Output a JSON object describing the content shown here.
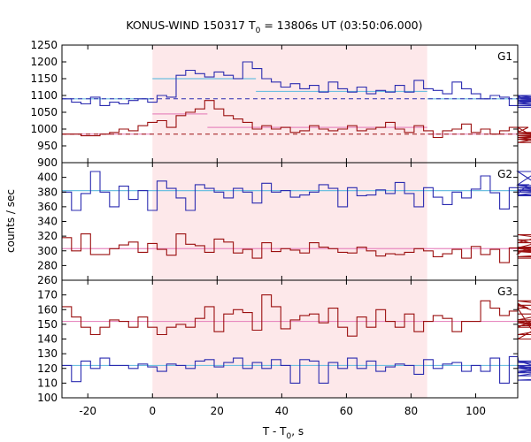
{
  "chart_data": {
    "type": "line",
    "title": "KONUS-WIND 150317 T",
    "title_sub": "0",
    "title_rest": " = 13806s UT (03:50:06.000)",
    "xlabel_main": "T - T",
    "xlabel_sub": "0",
    "xlabel_rest": ", s",
    "ylabel": "counts / sec",
    "xlim": [
      -28,
      113
    ],
    "xticks": [
      "-20",
      "0",
      "20",
      "40",
      "60",
      "80",
      "100"
    ],
    "xtick_values": [
      -20,
      0,
      20,
      40,
      60,
      80,
      100
    ],
    "step": 2.944,
    "x_start": -28,
    "highlight": {
      "from": 0,
      "to": 85,
      "color": "#fde8ea"
    },
    "colors": {
      "blue": "#2b2bb0",
      "red": "#9b1010",
      "blue_fit": "#6ec0e0",
      "red_fit": "#e88ac0"
    },
    "panels": [
      {
        "name": "G1",
        "ylim": [
          900,
          1250
        ],
        "yticks": [
          "900",
          "950",
          "1000",
          "1050",
          "1100",
          "1150",
          "1200",
          "1250"
        ],
        "ytick_values": [
          900,
          950,
          1000,
          1050,
          1100,
          1150,
          1200,
          1250
        ],
        "series": [
          {
            "color": "blue",
            "values": [
              1090,
              1080,
              1075,
              1095,
              1070,
              1080,
              1075,
              1085,
              1090,
              1080,
              1100,
              1095,
              1160,
              1175,
              1165,
              1155,
              1170,
              1160,
              1150,
              1200,
              1180,
              1150,
              1140,
              1125,
              1135,
              1120,
              1130,
              1110,
              1140,
              1120,
              1110,
              1125,
              1105,
              1115,
              1110,
              1130,
              1110,
              1145,
              1120,
              1115,
              1105,
              1140,
              1120,
              1105,
              1090,
              1100,
              1095,
              1070,
              1100,
              1080,
              1095,
              1075,
              1090,
              1085,
              1100,
              1080,
              1095,
              1070,
              1085,
              1065
            ],
            "fit_segments": [
              [
                -28,
                0,
                1090
              ],
              [
                0,
                32,
                1150
              ],
              [
                32,
                85,
                1112
              ],
              [
                85,
                113,
                1090
              ]
            ],
            "baseline": 1090
          },
          {
            "color": "red",
            "values": [
              985,
              985,
              980,
              980,
              985,
              990,
              1000,
              995,
              1010,
              1020,
              1025,
              1005,
              1040,
              1050,
              1060,
              1085,
              1060,
              1040,
              1030,
              1020,
              1000,
              1010,
              1000,
              1005,
              990,
              995,
              1010,
              1000,
              995,
              1000,
              1010,
              995,
              1000,
              1005,
              1020,
              1000,
              990,
              1010,
              995,
              975,
              995,
              1000,
              1015,
              990,
              1000,
              985,
              995,
              1005,
              990,
              1005,
              970,
              960,
              980,
              970,
              990,
              975,
              985,
              975,
              990,
              970
            ],
            "fit_segments": [
              [
                -28,
                0,
                985
              ],
              [
                0,
                17,
                1045
              ],
              [
                17,
                85,
                1005
              ],
              [
                85,
                113,
                985
              ]
            ],
            "baseline": 985
          }
        ]
      },
      {
        "name": "G2",
        "ylim": [
          260,
          420
        ],
        "yticks": [
          "260",
          "280",
          "300",
          "320",
          "340",
          "360",
          "380",
          "400"
        ],
        "ytick_values": [
          260,
          280,
          300,
          320,
          340,
          360,
          380,
          400
        ],
        "series": [
          {
            "color": "blue",
            "values": [
              380,
              355,
              378,
              408,
              380,
              360,
              388,
              370,
              382,
              355,
              395,
              385,
              372,
              355,
              390,
              385,
              380,
              372,
              385,
              380,
              365,
              392,
              380,
              382,
              373,
              376,
              380,
              390,
              385,
              360,
              386,
              375,
              376,
              383,
              378,
              393,
              378,
              360,
              386,
              373,
              363,
              380,
              372,
              384,
              402,
              379,
              357,
              386,
              378,
              390,
              408,
              382,
              386,
              380,
              383,
              376,
              389,
              375,
              383,
              376
            ],
            "fit_segments": [
              [
                -28,
                113,
                382
              ]
            ]
          },
          {
            "color": "red",
            "values": [
              318,
              300,
              323,
              295,
              295,
              303,
              308,
              312,
              298,
              310,
              302,
              294,
              323,
              309,
              307,
              298,
              316,
              312,
              297,
              302,
              290,
              311,
              299,
              303,
              301,
              297,
              311,
              305,
              303,
              298,
              297,
              305,
              300,
              293,
              296,
              295,
              298,
              303,
              300,
              292,
              296,
              302,
              290,
              306,
              295,
              302,
              284,
              304,
              296,
              304,
              311,
              322,
              315,
              299,
              305,
              300,
              303,
              292,
              299,
              290
            ],
            "fit_segments": [
              [
                -28,
                113,
                303
              ]
            ]
          }
        ]
      },
      {
        "name": "G3",
        "ylim": [
          100,
          180
        ],
        "yticks": [
          "100",
          "110",
          "120",
          "130",
          "140",
          "150",
          "160",
          "170"
        ],
        "ytick_values": [
          100,
          110,
          120,
          130,
          140,
          150,
          160,
          170
        ],
        "series": [
          {
            "color": "red",
            "values": [
              162,
              155,
              148,
              143,
              148,
              153,
              152,
              148,
              155,
              148,
              143,
              148,
              150,
              148,
              154,
              162,
              145,
              157,
              160,
              158,
              146,
              170,
              162,
              147,
              153,
              156,
              157,
              151,
              161,
              148,
              142,
              155,
              148,
              160,
              152,
              148,
              157,
              145,
              152,
              156,
              154,
              145,
              152,
              152,
              166,
              161,
              156,
              159,
              164,
              161,
              140,
              151,
              148,
              163,
              149,
              152,
              143,
              153,
              166,
              157
            ],
            "fit_segments": [
              [
                -28,
                113,
                152
              ]
            ]
          },
          {
            "color": "blue",
            "values": [
              122,
              111,
              125,
              120,
              127,
              122,
              122,
              120,
              123,
              121,
              118,
              123,
              122,
              120,
              125,
              126,
              121,
              124,
              127,
              120,
              124,
              120,
              126,
              122,
              110,
              126,
              125,
              110,
              124,
              120,
              127,
              120,
              125,
              118,
              121,
              123,
              122,
              116,
              126,
              120,
              123,
              124,
              118,
              122,
              118,
              127,
              110,
              128,
              124,
              125,
              121,
              118,
              121,
              120,
              117,
              124,
              122,
              112,
              115,
              125
            ],
            "fit_segments": [
              [
                -28,
                113,
                122
              ]
            ]
          }
        ]
      }
    ]
  }
}
